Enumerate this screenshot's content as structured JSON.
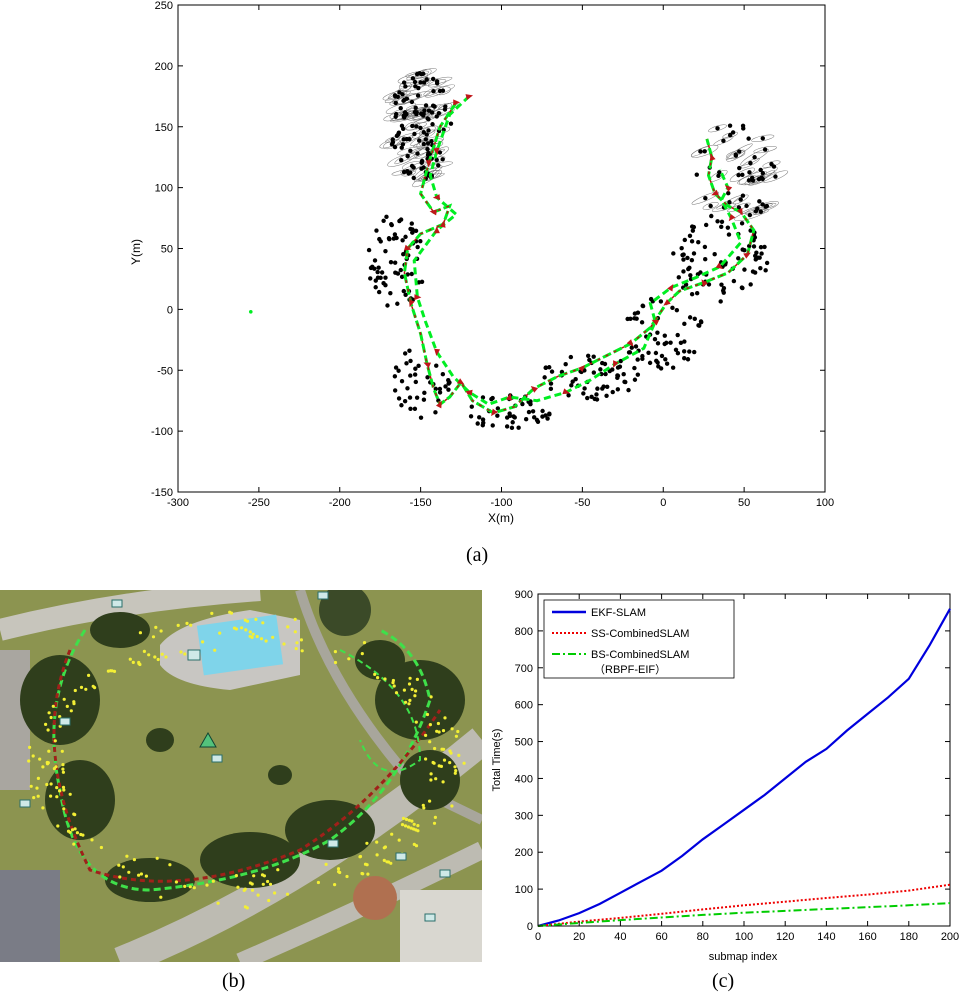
{
  "captions": {
    "a": "(a)",
    "b": "(b)",
    "c": "(c)"
  },
  "chart_data": [
    {
      "type": "scatter",
      "title": "",
      "xlabel": "X(m)",
      "ylabel": "Y(m)",
      "xlim": [
        -300,
        100
      ],
      "ylim": [
        -150,
        250
      ],
      "xticks": [
        "-300",
        "-250",
        "-200",
        "-150",
        "-100",
        "-50",
        "0",
        "50",
        "100"
      ],
      "yticks": [
        "-150",
        "-100",
        "-50",
        "0",
        "50",
        "100",
        "150",
        "200",
        "250"
      ],
      "trajectory": [
        [
          -128,
          170
        ],
        [
          -138,
          150
        ],
        [
          -145,
          120
        ],
        [
          -150,
          95
        ],
        [
          -142,
          80
        ],
        [
          -132,
          85
        ],
        [
          -136,
          70
        ],
        [
          -150,
          62
        ],
        [
          -158,
          50
        ],
        [
          -160,
          30
        ],
        [
          -156,
          5
        ],
        [
          -150,
          -20
        ],
        [
          -146,
          -45
        ],
        [
          -142,
          -65
        ],
        [
          -138,
          -78
        ],
        [
          -132,
          -72
        ],
        [
          -125,
          -60
        ],
        [
          -118,
          -75
        ],
        [
          -105,
          -85
        ],
        [
          -92,
          -80
        ],
        [
          -80,
          -65
        ],
        [
          -65,
          -55
        ],
        [
          -50,
          -48
        ],
        [
          -35,
          -38
        ],
        [
          -20,
          -28
        ],
        [
          -8,
          -15
        ],
        [
          2,
          5
        ],
        [
          10,
          15
        ],
        [
          25,
          22
        ],
        [
          40,
          30
        ],
        [
          52,
          45
        ],
        [
          56,
          65
        ],
        [
          48,
          80
        ],
        [
          40,
          85
        ],
        [
          32,
          95
        ],
        [
          28,
          110
        ],
        [
          30,
          125
        ],
        [
          27,
          140
        ]
      ],
      "trajectory2": [
        [
          -120,
          175
        ],
        [
          -132,
          160
        ],
        [
          -140,
          130
        ],
        [
          -144,
          110
        ],
        [
          -140,
          92
        ],
        [
          -128,
          78
        ],
        [
          -140,
          65
        ],
        [
          -154,
          40
        ],
        [
          -152,
          10
        ],
        [
          -147,
          -10
        ],
        [
          -140,
          -35
        ],
        [
          -130,
          -55
        ],
        [
          -120,
          -68
        ],
        [
          -108,
          -78
        ],
        [
          -95,
          -72
        ],
        [
          -78,
          -75
        ],
        [
          -60,
          -68
        ],
        [
          -45,
          -58
        ],
        [
          -30,
          -45
        ],
        [
          -12,
          -32
        ],
        [
          -5,
          -10
        ],
        [
          -8,
          5
        ],
        [
          5,
          18
        ],
        [
          20,
          26
        ],
        [
          35,
          35
        ],
        [
          48,
          55
        ],
        [
          42,
          75
        ],
        [
          36,
          90
        ],
        [
          40,
          100
        ],
        [
          35,
          115
        ]
      ],
      "outlier": [
        -255,
        -2
      ],
      "landmark_regions": [
        {
          "cx": -150,
          "cy": 150,
          "rx": 20,
          "ry": 45,
          "n": 120
        },
        {
          "cx": -165,
          "cy": 40,
          "rx": 18,
          "ry": 40,
          "n": 70
        },
        {
          "cx": -150,
          "cy": -60,
          "rx": 18,
          "ry": 30,
          "n": 40
        },
        {
          "cx": -95,
          "cy": -85,
          "rx": 25,
          "ry": 18,
          "n": 45
        },
        {
          "cx": -45,
          "cy": -55,
          "rx": 30,
          "ry": 20,
          "n": 60
        },
        {
          "cx": 0,
          "cy": -20,
          "rx": 25,
          "ry": 30,
          "n": 60
        },
        {
          "cx": 35,
          "cy": 40,
          "rx": 30,
          "ry": 35,
          "n": 80
        },
        {
          "cx": 45,
          "cy": 110,
          "rx": 25,
          "ry": 45,
          "n": 55
        }
      ]
    },
    {
      "type": "line",
      "title": "",
      "xlabel": "submap index",
      "ylabel": "Total Time(s)",
      "xlim": [
        0,
        200
      ],
      "ylim": [
        0,
        900
      ],
      "xticks": [
        "0",
        "20",
        "40",
        "60",
        "80",
        "100",
        "120",
        "140",
        "160",
        "180",
        "200"
      ],
      "yticks": [
        "0",
        "100",
        "200",
        "300",
        "400",
        "500",
        "600",
        "700",
        "800",
        "900"
      ],
      "legend_position": "top-left",
      "series": [
        {
          "name": "EKF-SLAM",
          "color": "#0000dd",
          "x": [
            0,
            10,
            20,
            30,
            40,
            50,
            60,
            70,
            80,
            90,
            100,
            110,
            120,
            130,
            140,
            150,
            160,
            170,
            180,
            190,
            200
          ],
          "values": [
            0,
            15,
            35,
            60,
            90,
            120,
            150,
            190,
            235,
            275,
            315,
            355,
            400,
            445,
            480,
            530,
            575,
            620,
            670,
            760,
            860
          ]
        },
        {
          "name": "SS-CombinedSLAM",
          "color": "#ee0000",
          "x": [
            0,
            20,
            40,
            60,
            80,
            100,
            120,
            140,
            160,
            180,
            200
          ],
          "values": [
            0,
            12,
            22,
            33,
            45,
            56,
            66,
            76,
            85,
            96,
            112
          ]
        },
        {
          "name": "BS-CombinedSLAM",
          "name2": "（RBPF-EIF）",
          "color": "#00cc00",
          "x": [
            0,
            20,
            40,
            60,
            80,
            100,
            120,
            140,
            160,
            180,
            200
          ],
          "values": [
            0,
            8,
            16,
            23,
            30,
            36,
            41,
            46,
            51,
            56,
            62
          ]
        }
      ]
    }
  ],
  "satellite": {
    "grass": "#8c9450",
    "trees": "#2f3e1c",
    "road": "#b9b7ad",
    "pool": "#7fd4ea",
    "path_green": "#3fe04a",
    "path_red": "#a0201a",
    "landmark_yellow": "#f3ef35"
  }
}
